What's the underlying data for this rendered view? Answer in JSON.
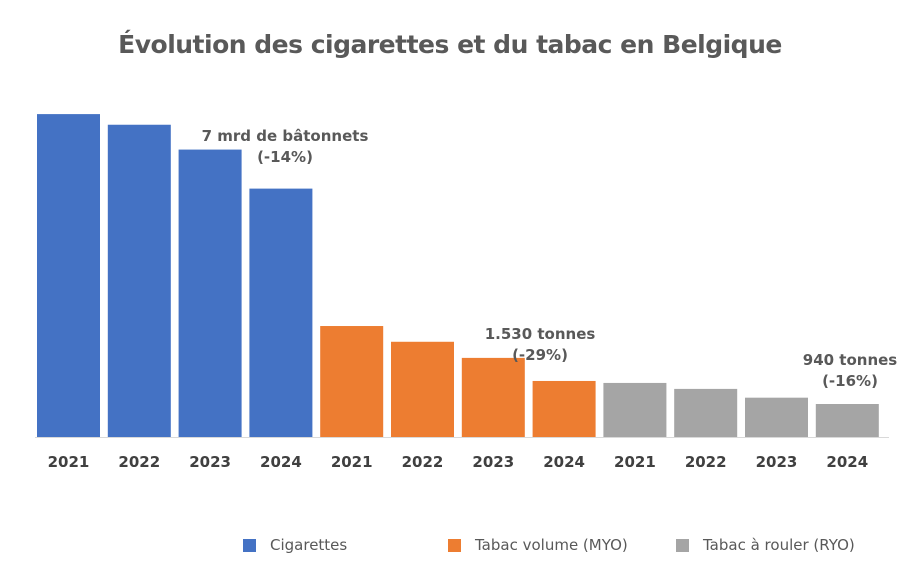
{
  "chart_data": {
    "type": "bar",
    "title": "Évolution des cigarettes et du tabac en Belgique",
    "xlabel": "",
    "ylabel": "",
    "grid": false,
    "legend_position": "bottom",
    "categories": [
      "2021",
      "2022",
      "2023",
      "2024"
    ],
    "series": [
      {
        "name": "Cigarettes",
        "unit": "mrd de bâtonnets",
        "color": "#4472C4",
        "values": [
          9.1,
          8.8,
          8.1,
          7.0
        ],
        "ylim": [
          0,
          9.3
        ],
        "annotation": [
          "7 mrd  de bâtonnets",
          "(-14%)"
        ]
      },
      {
        "name": "Tabac volume (MYO)",
        "unit": "tonnes",
        "color": "#ED7D31",
        "values": [
          3030,
          2600,
          2160,
          1530
        ],
        "ylim": [
          0,
          9010
        ],
        "annotation": [
          "1.530 tonnes",
          "(-29%)"
        ]
      },
      {
        "name": "Tabac à rouler (RYO)",
        "unit": "tonnes",
        "color": "#A5A5A5",
        "values": [
          1540,
          1370,
          1120,
          940
        ],
        "ylim": [
          0,
          9400
        ],
        "annotation": [
          "940 tonnes",
          "(-16%)"
        ]
      }
    ]
  }
}
